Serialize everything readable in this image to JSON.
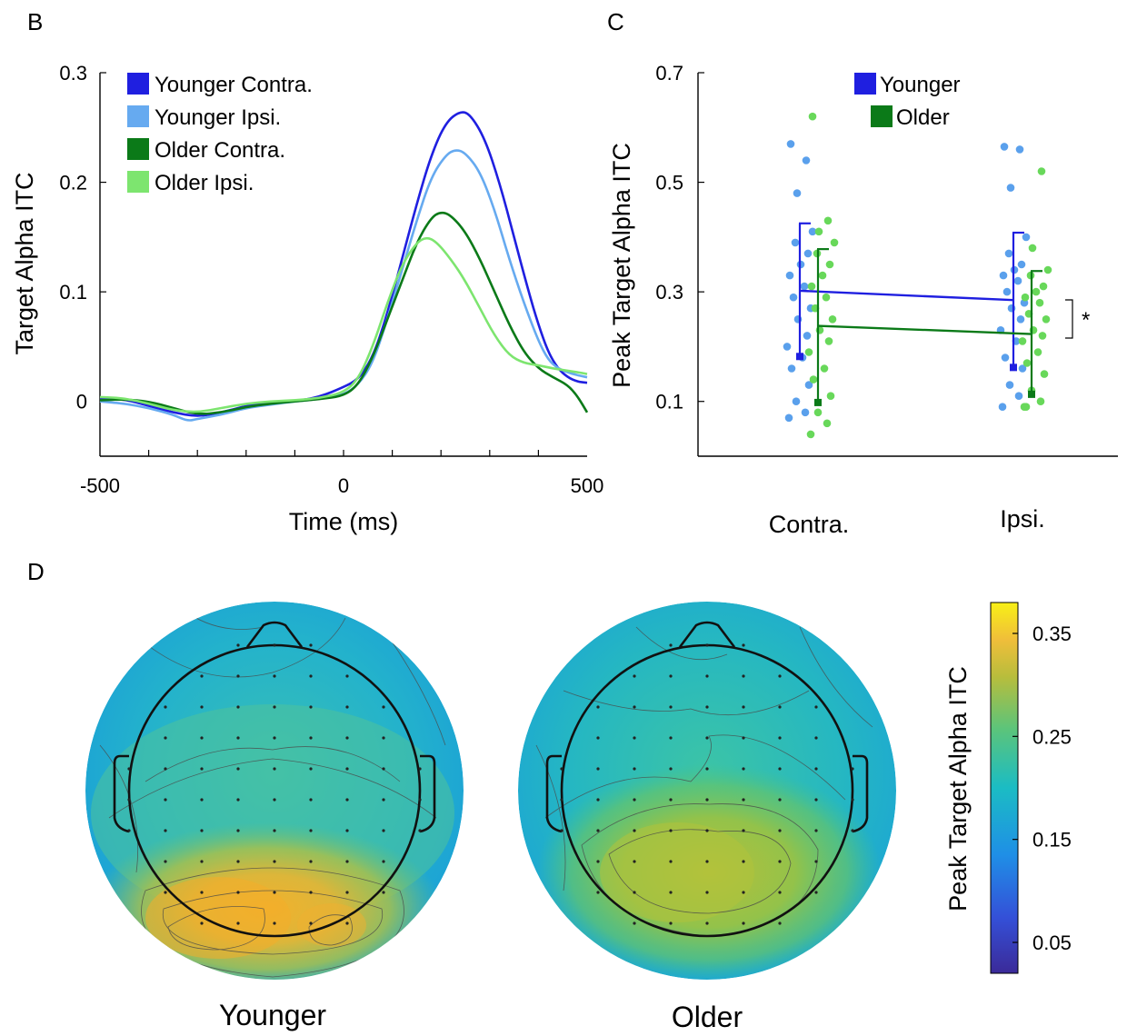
{
  "panels": {
    "B": "B",
    "C": "C",
    "D": "D"
  },
  "chart_data": [
    {
      "panel": "B",
      "type": "line",
      "xlabel": "Time (ms)",
      "ylabel": "Target Alpha ITC",
      "xlim": [
        -500,
        500
      ],
      "ylim": [
        -0.05,
        0.3
      ],
      "xticks": [
        -500,
        0,
        500
      ],
      "yticks": [
        0,
        0.1,
        0.2,
        0.3
      ],
      "ytick_labels": [
        "0",
        "0.1",
        "0.2",
        "0.3"
      ],
      "legend_position": "top-left",
      "series": [
        {
          "name": "Younger Contra.",
          "color": "#1f1fe0",
          "points": [
            [
              -500,
              0.003
            ],
            [
              -450,
              0.002
            ],
            [
              -400,
              -0.004
            ],
            [
              -350,
              -0.01
            ],
            [
              -300,
              -0.014
            ],
            [
              -250,
              -0.01
            ],
            [
              -200,
              -0.004
            ],
            [
              -150,
              -0.001
            ],
            [
              -100,
              0.0
            ],
            [
              -50,
              0.004
            ],
            [
              0,
              0.013
            ],
            [
              30,
              0.02
            ],
            [
              60,
              0.04
            ],
            [
              90,
              0.08
            ],
            [
              120,
              0.13
            ],
            [
              150,
              0.18
            ],
            [
              180,
              0.225
            ],
            [
              210,
              0.255
            ],
            [
              240,
              0.265
            ],
            [
              260,
              0.262
            ],
            [
              290,
              0.24
            ],
            [
              320,
              0.2
            ],
            [
              350,
              0.15
            ],
            [
              380,
              0.1
            ],
            [
              400,
              0.07
            ],
            [
              420,
              0.045
            ],
            [
              440,
              0.03
            ],
            [
              460,
              0.022
            ],
            [
              480,
              0.018
            ],
            [
              500,
              0.017
            ]
          ]
        },
        {
          "name": "Younger Ipsi.",
          "color": "#66aaf0",
          "points": [
            [
              -500,
              0.0
            ],
            [
              -450,
              -0.002
            ],
            [
              -400,
              -0.006
            ],
            [
              -350,
              -0.012
            ],
            [
              -320,
              -0.018
            ],
            [
              -300,
              -0.016
            ],
            [
              -250,
              -0.012
            ],
            [
              -200,
              -0.006
            ],
            [
              -150,
              -0.003
            ],
            [
              -100,
              0.0
            ],
            [
              -50,
              0.002
            ],
            [
              0,
              0.006
            ],
            [
              30,
              0.015
            ],
            [
              60,
              0.035
            ],
            [
              90,
              0.075
            ],
            [
              120,
              0.12
            ],
            [
              150,
              0.165
            ],
            [
              180,
              0.205
            ],
            [
              210,
              0.225
            ],
            [
              230,
              0.23
            ],
            [
              250,
              0.227
            ],
            [
              280,
              0.21
            ],
            [
              310,
              0.175
            ],
            [
              340,
              0.13
            ],
            [
              370,
              0.09
            ],
            [
              400,
              0.055
            ],
            [
              420,
              0.038
            ],
            [
              440,
              0.03
            ],
            [
              470,
              0.025
            ],
            [
              500,
              0.022
            ]
          ]
        },
        {
          "name": "Older Contra.",
          "color": "#0b7a18",
          "points": [
            [
              -500,
              0.001
            ],
            [
              -450,
              0.002
            ],
            [
              -400,
              0.0
            ],
            [
              -350,
              -0.006
            ],
            [
              -300,
              -0.012
            ],
            [
              -250,
              -0.01
            ],
            [
              -200,
              -0.005
            ],
            [
              -150,
              -0.002
            ],
            [
              -100,
              0.0
            ],
            [
              -50,
              0.002
            ],
            [
              0,
              0.005
            ],
            [
              30,
              0.015
            ],
            [
              60,
              0.04
            ],
            [
              90,
              0.075
            ],
            [
              120,
              0.11
            ],
            [
              150,
              0.145
            ],
            [
              180,
              0.168
            ],
            [
              200,
              0.173
            ],
            [
              220,
              0.17
            ],
            [
              250,
              0.155
            ],
            [
              280,
              0.13
            ],
            [
              310,
              0.1
            ],
            [
              340,
              0.07
            ],
            [
              370,
              0.045
            ],
            [
              400,
              0.03
            ],
            [
              430,
              0.022
            ],
            [
              460,
              0.015
            ],
            [
              480,
              0.005
            ],
            [
              500,
              -0.01
            ]
          ]
        },
        {
          "name": "Older Ipsi.",
          "color": "#7de56f",
          "points": [
            [
              -500,
              0.004
            ],
            [
              -450,
              0.003
            ],
            [
              -400,
              -0.002
            ],
            [
              -350,
              -0.008
            ],
            [
              -300,
              -0.01
            ],
            [
              -250,
              -0.006
            ],
            [
              -200,
              -0.002
            ],
            [
              -150,
              0.0
            ],
            [
              -100,
              0.001
            ],
            [
              -50,
              0.003
            ],
            [
              0,
              0.008
            ],
            [
              30,
              0.02
            ],
            [
              60,
              0.05
            ],
            [
              90,
              0.09
            ],
            [
              120,
              0.125
            ],
            [
              150,
              0.145
            ],
            [
              170,
              0.15
            ],
            [
              190,
              0.146
            ],
            [
              220,
              0.13
            ],
            [
              250,
              0.11
            ],
            [
              280,
              0.085
            ],
            [
              310,
              0.06
            ],
            [
              340,
              0.042
            ],
            [
              370,
              0.035
            ],
            [
              400,
              0.033
            ],
            [
              430,
              0.03
            ],
            [
              460,
              0.028
            ],
            [
              490,
              0.026
            ],
            [
              500,
              0.025
            ]
          ]
        }
      ]
    },
    {
      "panel": "C",
      "type": "scatter",
      "ylabel": "Peak Target Alpha ITC",
      "categories": [
        "Contra.",
        "Ipsi."
      ],
      "ylim": [
        0.0,
        0.7
      ],
      "yticks": [
        0.1,
        0.3,
        0.5,
        0.7
      ],
      "legend_position": "top-center",
      "significance": "*",
      "series": [
        {
          "name": "Younger",
          "color": "#1f1fe0",
          "point_color": "#5aa0ec",
          "mean": [
            0.302,
            0.285
          ],
          "lower": [
            0.182,
            0.162
          ],
          "upper": [
            0.425,
            0.408
          ],
          "points": [
            [
              0.07,
              0.08,
              0.1,
              0.13,
              0.16,
              0.18,
              0.2,
              0.22,
              0.25,
              0.27,
              0.29,
              0.31,
              0.33,
              0.35,
              0.37,
              0.39,
              0.41,
              0.48,
              0.54,
              0.57
            ],
            [
              0.09,
              0.11,
              0.13,
              0.16,
              0.18,
              0.21,
              0.23,
              0.25,
              0.27,
              0.28,
              0.3,
              0.32,
              0.33,
              0.34,
              0.35,
              0.37,
              0.4,
              0.49,
              0.56,
              0.565
            ]
          ]
        },
        {
          "name": "Older",
          "color": "#0b7a18",
          "point_color": "#68d85a",
          "mean": [
            0.238,
            0.223
          ],
          "lower": [
            0.098,
            0.113
          ],
          "upper": [
            0.378,
            0.338
          ],
          "points": [
            [
              0.04,
              0.06,
              0.08,
              0.11,
              0.14,
              0.16,
              0.19,
              0.21,
              0.23,
              0.25,
              0.27,
              0.29,
              0.31,
              0.33,
              0.35,
              0.37,
              0.39,
              0.41,
              0.43,
              0.62
            ],
            [
              0.09,
              0.1,
              0.12,
              0.15,
              0.17,
              0.19,
              0.21,
              0.22,
              0.23,
              0.25,
              0.26,
              0.28,
              0.29,
              0.3,
              0.31,
              0.33,
              0.34,
              0.38,
              0.52,
              0.09
            ]
          ]
        }
      ]
    },
    {
      "panel": "D",
      "type": "heatmap",
      "colorbar_label": "Peak Target Alpha ITC",
      "colorbar_range": [
        0.02,
        0.38
      ],
      "colorbar_ticks": [
        0.05,
        0.15,
        0.25,
        0.35
      ],
      "colorbar_tick_labels": [
        "0.05",
        "0.15",
        "0.25",
        "0.35"
      ],
      "maps": [
        {
          "title": "Younger",
          "occipital_peak": 0.33
        },
        {
          "title": "Older",
          "occipital_peak": 0.28
        }
      ]
    }
  ]
}
